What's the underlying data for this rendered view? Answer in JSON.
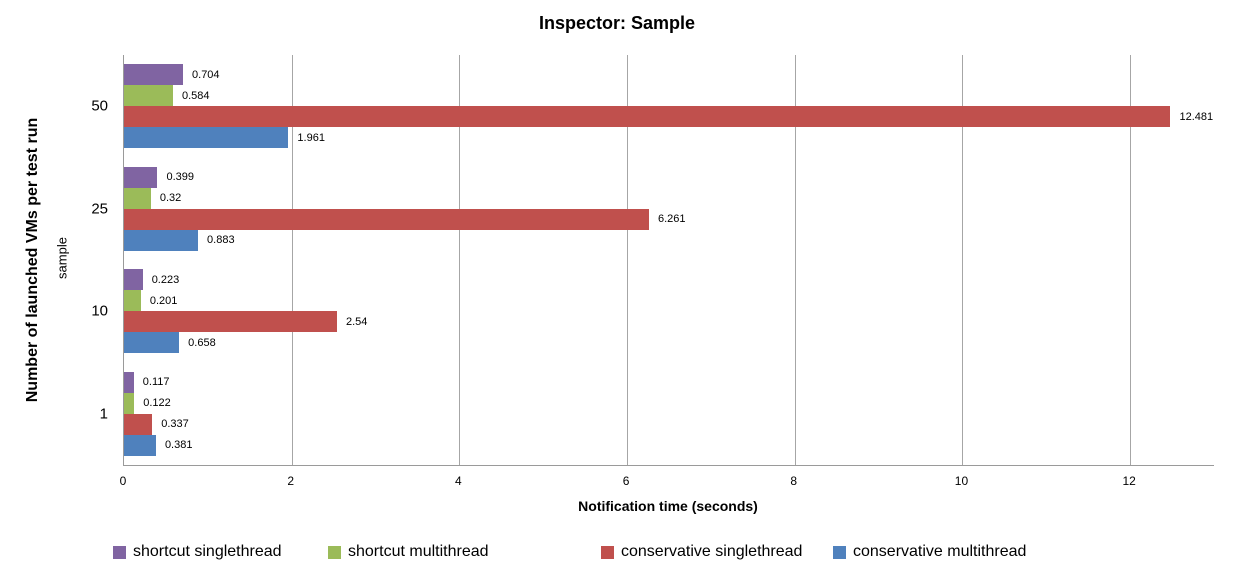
{
  "chart_data": {
    "type": "bar",
    "orientation": "horizontal",
    "title": "Inspector: Sample",
    "xlabel": "Notification time (seconds)",
    "ylabel_outer": "Number of launched VMs per test run",
    "ylabel_inner": "sample",
    "categories": [
      "50",
      "25",
      "10",
      "1"
    ],
    "series": [
      {
        "name": "shortcut singlethread",
        "color": "#8064A2",
        "values": [
          0.704,
          0.399,
          0.223,
          0.117
        ],
        "labels": [
          "0.704",
          "0.399",
          "0.223",
          "0.117"
        ]
      },
      {
        "name": "shortcut multithread",
        "color": "#9BBB59",
        "values": [
          0.584,
          0.32,
          0.201,
          0.122
        ],
        "labels": [
          "0.584",
          "0.32",
          "0.201",
          "0.122"
        ]
      },
      {
        "name": "conservative singlethread",
        "color": "#C0504D",
        "values": [
          12.481,
          6.261,
          2.54,
          0.337
        ],
        "labels": [
          "12.481",
          "6.261",
          "2.54",
          "0.337"
        ]
      },
      {
        "name": "conservative multithread",
        "color": "#4F81BD",
        "values": [
          1.961,
          0.883,
          0.658,
          0.381
        ],
        "labels": [
          "1.961",
          "0.883",
          "0.658",
          "0.381"
        ]
      }
    ],
    "xticks": [
      "0",
      "2",
      "4",
      "6",
      "8",
      "10",
      "12"
    ],
    "xlim": [
      0,
      13
    ],
    "grid": "vertical",
    "gridline_color": "#a6a6a6",
    "legend_position": "bottom",
    "legend_x_positions": [
      113,
      328,
      601,
      833
    ]
  }
}
